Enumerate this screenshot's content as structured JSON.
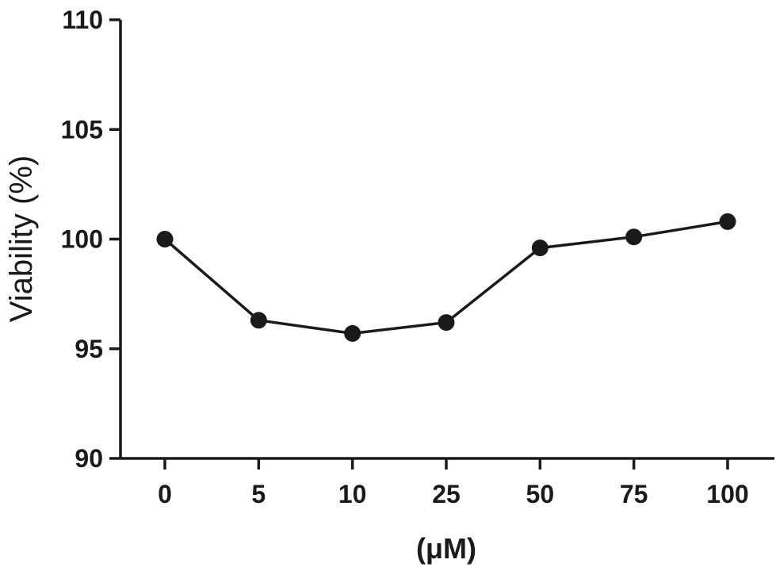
{
  "chart_data": {
    "type": "line",
    "categories": [
      "0",
      "5",
      "10",
      "25",
      "50",
      "75",
      "100"
    ],
    "series": [
      {
        "values": [
          100.0,
          96.3,
          95.7,
          96.2,
          99.6,
          100.1,
          100.8
        ]
      }
    ],
    "xlabel": "(μM)",
    "ylabel": "Viability (%)",
    "ylim": [
      90,
      110
    ],
    "yticks": [
      "90",
      "95",
      "100",
      "105",
      "110"
    ],
    "grid": false,
    "line_color": "#1a1a1a"
  }
}
